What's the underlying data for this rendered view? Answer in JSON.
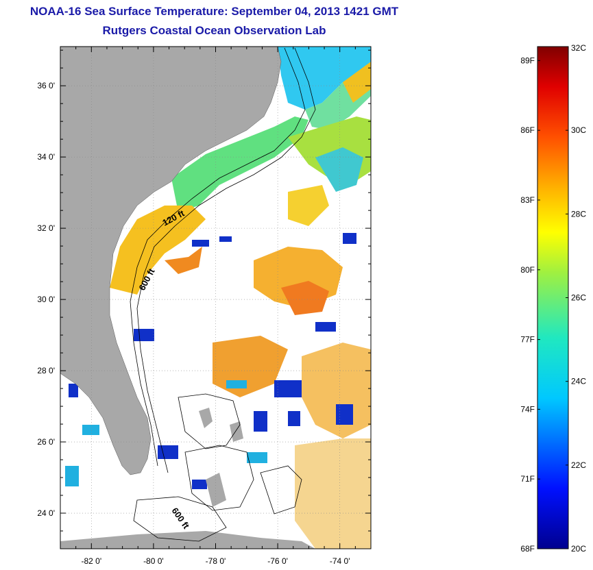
{
  "title": {
    "line1": "NOAA-16 Sea Surface Temperature:  September 04, 2013 1421 GMT",
    "line2": "Rutgers Coastal Ocean Observation Lab"
  },
  "map": {
    "lat_ticks": [
      "24 0'",
      "26 0'",
      "28 0'",
      "30 0'",
      "32 0'",
      "34 0'",
      "36 0'"
    ],
    "lon_ticks": [
      "-82 0'",
      "-80 0'",
      "-78 0'",
      "-76 0'",
      "-74 0'"
    ],
    "lat_values": [
      24,
      26,
      28,
      30,
      32,
      34,
      36
    ],
    "lon_values": [
      -82,
      -80,
      -78,
      -76,
      -74
    ],
    "lat_range": [
      23.0,
      37.1
    ],
    "lon_range": [
      -83.0,
      -73.0
    ],
    "contour_labels": [
      "120 ft",
      "600 ft",
      "600 ft"
    ],
    "colors": {
      "land": "#a8a8a8",
      "cloud": "#ffffff",
      "title": "#1a1aa8"
    }
  },
  "colorbar": {
    "fahrenheit_labels": [
      "89F",
      "86F",
      "83F",
      "80F",
      "77F",
      "74F",
      "71F",
      "68F"
    ],
    "celsius_labels": [
      "32C",
      "30C",
      "28C",
      "26C",
      "24C",
      "22C",
      "20C"
    ],
    "range_c": [
      20,
      32
    ]
  }
}
